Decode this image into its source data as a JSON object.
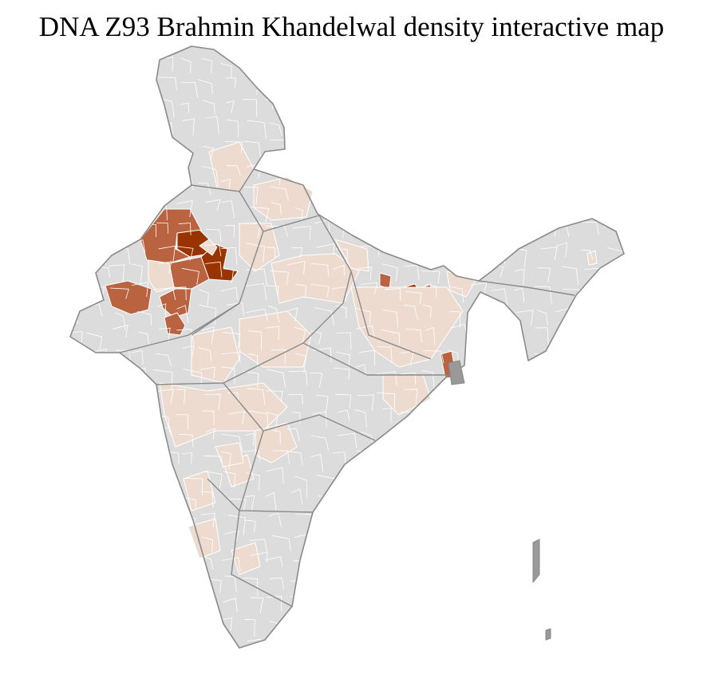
{
  "title": "DNA Z93 Brahmin Khandelwal density interactive map",
  "colors": {
    "none": "#dcdcdc",
    "low": "#eedbd0",
    "medium": "#b96340",
    "high": "#993300",
    "district_border": "#ffffff",
    "state_border": "#8a8a8a"
  }
}
